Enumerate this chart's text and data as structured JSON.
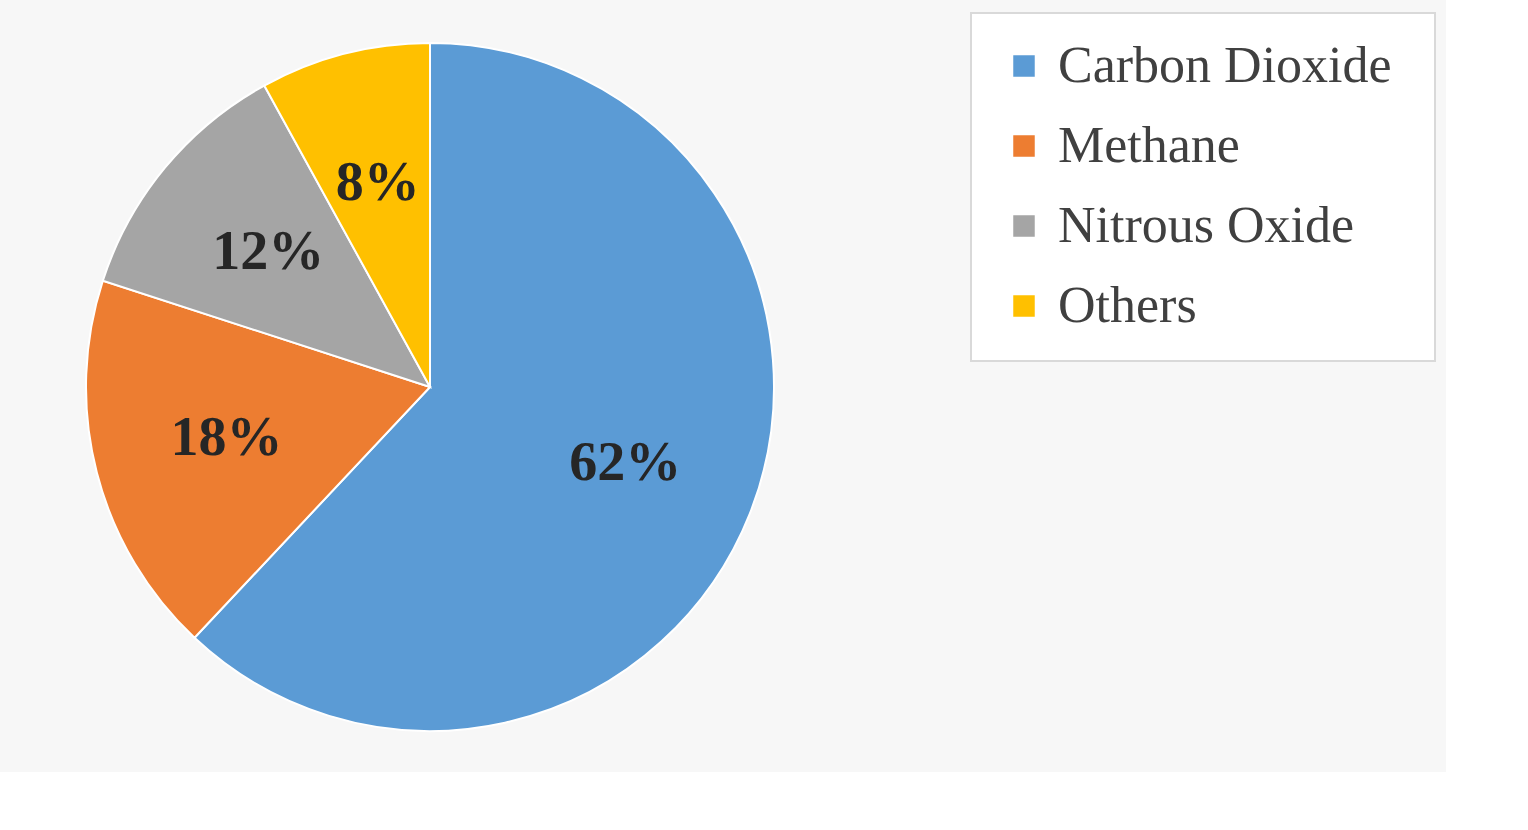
{
  "chart_data": {
    "type": "pie",
    "categories": [
      "Carbon  Dioxide",
      "Methane",
      "Nitrous Oxide",
      "Others"
    ],
    "values": [
      62,
      18,
      12,
      8
    ],
    "colors": [
      "#5b9bd5",
      "#ed7d31",
      "#a5a5a5",
      "#ffc000"
    ],
    "value_labels": [
      "62%",
      "18%",
      "12%",
      "8%"
    ],
    "legend": "right"
  }
}
